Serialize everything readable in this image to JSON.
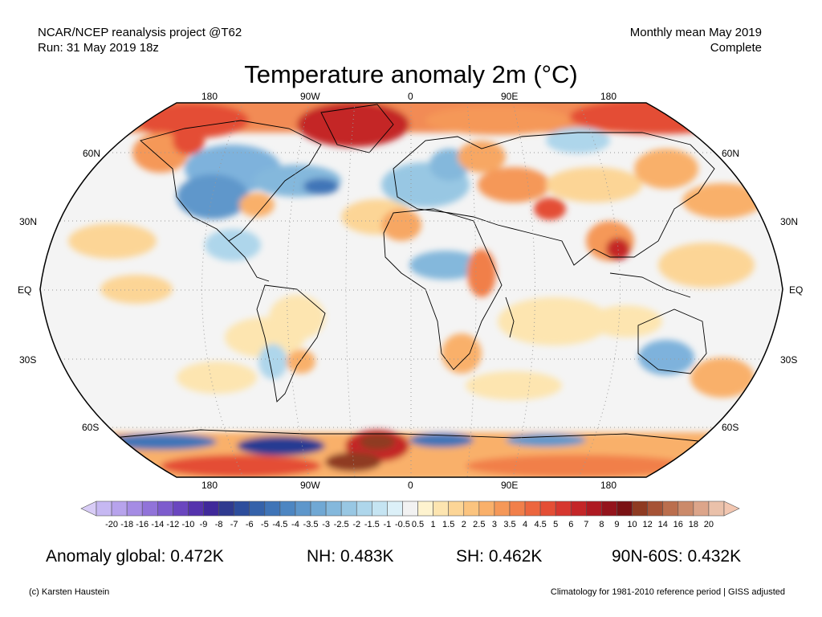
{
  "header": {
    "left_line1": "NCAR/NCEP reanalysis project @T62",
    "left_line2": "Run: 31 May 2019 18z",
    "right_line1": "Monthly mean May 2019",
    "right_line2": "Complete"
  },
  "title": "Temperature anomaly 2m (°C)",
  "map": {
    "lon_labels": [
      "180",
      "90W",
      "0",
      "90E",
      "180"
    ],
    "lat_labels": [
      "60N",
      "30N",
      "EQ",
      "30S",
      "60S"
    ],
    "graticule": "dotted",
    "palette": {
      "ocean_base": "#f4f4f4",
      "warm_light": "#fbd9a4",
      "warm_mid": "#f7a763",
      "warm_strong": "#e2453b",
      "warm_extreme": "#a31a1c",
      "warm_peak": "#8f4a32",
      "cool_light": "#bfe3f2",
      "cool_mid": "#7eb2dc",
      "cool_strong": "#3f6fb6",
      "cool_extreme": "#273b92"
    }
  },
  "colorbar": {
    "ticks": [
      "-20",
      "-18",
      "-16",
      "-14",
      "-12",
      "-10",
      "-9",
      "-8",
      "-7",
      "-6",
      "-5",
      "-4.5",
      "-4",
      "-3.5",
      "-3",
      "-2.5",
      "-2",
      "-1.5",
      "-1",
      "-0.5",
      "0.5",
      "1",
      "1.5",
      "2",
      "2.5",
      "3",
      "3.5",
      "4",
      "4.5",
      "5",
      "6",
      "7",
      "8",
      "9",
      "10",
      "12",
      "14",
      "16",
      "18",
      "20"
    ],
    "colors": [
      "#c6b8f2",
      "#b7a3ec",
      "#a58ce4",
      "#9173d9",
      "#7d5ccd",
      "#6a46bf",
      "#5533ad",
      "#40299a",
      "#2f3a8f",
      "#2d4d9c",
      "#3562aa",
      "#3f74b7",
      "#4d86c2",
      "#5e97cb",
      "#70a8d4",
      "#84b8dc",
      "#98c7e3",
      "#aed6eb",
      "#c5e4f2",
      "#dcf0f8",
      "#f2f2f2",
      "#fef3cf",
      "#fde5b0",
      "#fcd596",
      "#fbc47f",
      "#f9b06a",
      "#f59858",
      "#f17f4a",
      "#ec663e",
      "#e44e35",
      "#d6372f",
      "#c42628",
      "#ae1a22",
      "#94141c",
      "#7a1214",
      "#8f3b22",
      "#a65336",
      "#bb6e4d",
      "#cb8a6a",
      "#dca58a",
      "#eac1aa"
    ],
    "over_color": "#f2c6b0",
    "under_color": "#d8ccf6"
  },
  "stats": {
    "global": "Anomaly global: 0.472K",
    "nh": "NH: 0.483K",
    "sh": "SH: 0.462K",
    "arctic": "90N-60S: 0.432K"
  },
  "footer": {
    "left": "(c) Karsten Haustein",
    "right": "Climatology for 1981-2010 reference period | GISS adjusted"
  }
}
